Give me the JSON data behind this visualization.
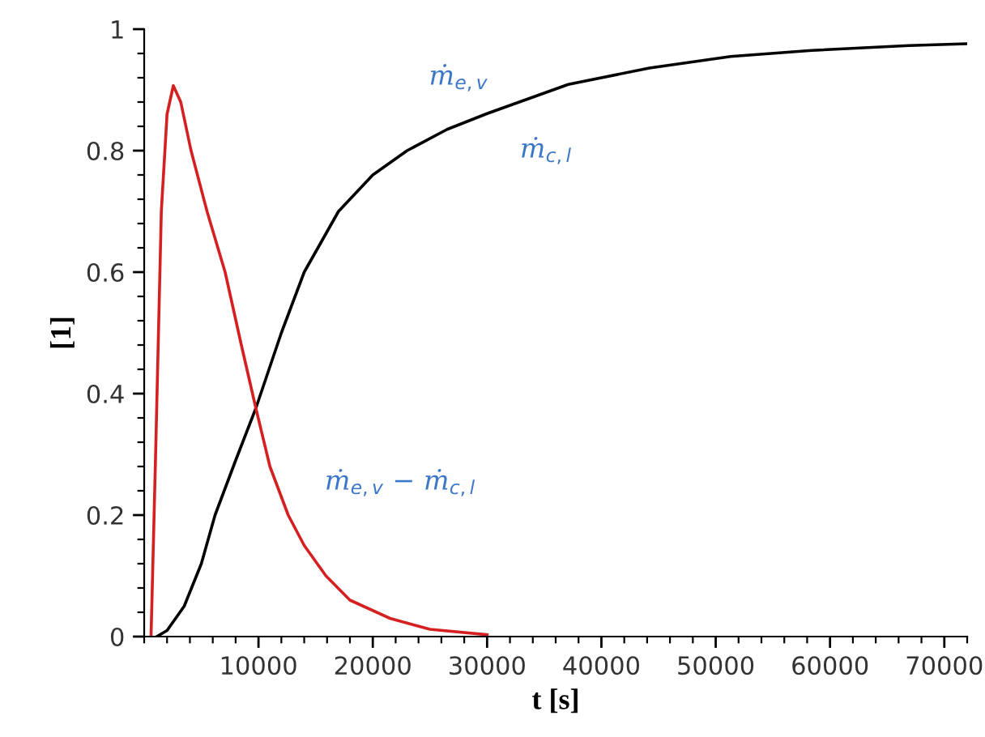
{
  "chart_data": {
    "type": "line",
    "xlabel": "t [s]",
    "ylabel": "[1]",
    "series": [
      {
        "color": "#000000",
        "x": [
          1100,
          2000,
          3500,
          5000,
          6200,
          8000,
          9770,
          12000,
          14000,
          17000,
          20000,
          23000,
          26500,
          30000,
          37100,
          44200,
          51300,
          58400,
          66900,
          72000
        ],
        "values": [
          0,
          0.01,
          0.05,
          0.12,
          0.2,
          0.29,
          0.376,
          0.5,
          0.6,
          0.7,
          0.76,
          0.8,
          0.835,
          0.861,
          0.909,
          0.936,
          0.955,
          0.965,
          0.973,
          0.976
        ]
      },
      {
        "color": "#d42020",
        "x": [
          600,
          1000,
          1500,
          2000,
          2550,
          3200,
          4100,
          5500,
          7080,
          8500,
          9770,
          11000,
          12600,
          14000,
          15900,
          18000,
          21500,
          25000,
          30000
        ],
        "values": [
          0,
          0.3,
          0.7,
          0.86,
          0.907,
          0.88,
          0.8,
          0.7,
          0.6,
          0.48,
          0.376,
          0.28,
          0.2,
          0.15,
          0.1,
          0.06,
          0.03,
          0.012,
          0.003
        ]
      }
    ],
    "annotations": [
      "ṁ$_{e,v}$",
      "ṁ$_{c,l}$",
      "ṁ$_{e,v}$ − ṁ$_{c,l}$"
    ],
    "xlim": [
      0,
      72000
    ],
    "xticks": [
      10000,
      20000,
      30000,
      40000,
      50000,
      60000,
      70000
    ],
    "ylim": [
      0,
      1
    ],
    "yticks": [
      0,
      0.2,
      0.4,
      0.6,
      0.8,
      1
    ],
    "grid": false,
    "legend": false,
    "marker": "none",
    "line_style": "solid"
  }
}
